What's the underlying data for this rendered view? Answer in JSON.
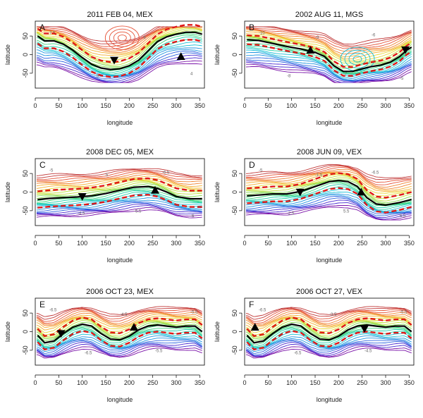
{
  "figure": {
    "description_free": true
  },
  "chart_data": [
    {
      "type": "line",
      "letter": "A",
      "title": "2011 FEB 04, MEX",
      "xlabel": "longitude",
      "ylabel": "latitude",
      "xlim": [
        0,
        360
      ],
      "ylim": [
        -90,
        90
      ],
      "xticks": [
        0,
        50,
        100,
        150,
        200,
        250,
        300,
        350
      ],
      "yticks": [
        -50,
        0,
        50
      ],
      "ytick_labels": [
        "-50",
        "0",
        "50"
      ],
      "boundary_line": {
        "longitude": [
          5,
          20,
          40,
          60,
          80,
          100,
          120,
          140,
          160,
          180,
          200,
          220,
          240,
          260,
          280,
          300,
          320,
          340,
          355
        ],
        "latitude": [
          50,
          37,
          37,
          28,
          12,
          -8,
          -26,
          -36,
          -40,
          -38,
          -30,
          -15,
          10,
          35,
          48,
          55,
          60,
          60,
          55
        ]
      },
      "dashed_offset": 20,
      "markers": [
        {
          "longitude": 168,
          "latitude": -15,
          "shape": "down"
        },
        {
          "longitude": 310,
          "latitude": -5,
          "shape": "up"
        }
      ],
      "contour_labels": [
        "7.5",
        "5",
        "6",
        "4"
      ],
      "vortex": {
        "longitude": 185,
        "latitude": 45
      }
    },
    {
      "type": "line",
      "letter": "B",
      "title": "2002 AUG 11, MGS",
      "xlabel": "longitude",
      "ylabel": "latitude",
      "xlim": [
        0,
        360
      ],
      "ylim": [
        -90,
        90
      ],
      "xticks": [
        0,
        50,
        100,
        150,
        200,
        250,
        300,
        350
      ],
      "yticks": [
        -50,
        0,
        50
      ],
      "ytick_labels": [
        "-50",
        "0",
        "50"
      ],
      "boundary_line": {
        "longitude": [
          5,
          30,
          60,
          90,
          120,
          150,
          170,
          190,
          210,
          230,
          250,
          270,
          290,
          310,
          330,
          345,
          355
        ],
        "latitude": [
          40,
          38,
          30,
          22,
          15,
          6,
          -5,
          -30,
          -45,
          -45,
          -38,
          -32,
          -28,
          -20,
          -5,
          12,
          20
        ]
      },
      "dashed_offset": 12,
      "markers": [
        {
          "longitude": 140,
          "latitude": 12,
          "shape": "up"
        },
        {
          "longitude": 342,
          "latitude": 13,
          "shape": "down"
        }
      ],
      "contour_labels": [
        "-10",
        "-8",
        "-9",
        "-7",
        "-6",
        "-5"
      ],
      "vortex": {
        "longitude": 240,
        "latitude": -12
      }
    },
    {
      "type": "line",
      "letter": "C",
      "title": "2008 DEC 05, MEX",
      "xlabel": "longitude",
      "ylabel": "latitude",
      "xlim": [
        0,
        360
      ],
      "ylim": [
        -90,
        90
      ],
      "xticks": [
        0,
        50,
        100,
        150,
        200,
        250,
        300,
        350
      ],
      "yticks": [
        -50,
        0,
        50
      ],
      "ytick_labels": [
        "-50",
        "0",
        "50"
      ],
      "boundary_line": {
        "longitude": [
          5,
          30,
          60,
          90,
          120,
          150,
          180,
          210,
          240,
          260,
          280,
          300,
          330,
          355
        ],
        "latitude": [
          -20,
          -17,
          -15,
          -13,
          -10,
          -4,
          5,
          13,
          15,
          10,
          0,
          -12,
          -18,
          -18
        ]
      },
      "dashed_offset": 22,
      "markers": [
        {
          "longitude": 100,
          "latitude": -12,
          "shape": "down"
        },
        {
          "longitude": 255,
          "latitude": 5,
          "shape": "up"
        }
      ],
      "contour_labels": [
        "-5",
        "-4.5",
        "5",
        "-5.5",
        "-6.5",
        "-6"
      ],
      "vortex": null
    },
    {
      "type": "line",
      "letter": "D",
      "title": "2008 JUN 09, VEX",
      "xlabel": "longitude",
      "ylabel": "latitude",
      "xlim": [
        0,
        360
      ],
      "ylim": [
        -90,
        90
      ],
      "xticks": [
        0,
        50,
        100,
        150,
        200,
        250,
        300,
        350
      ],
      "yticks": [
        -50,
        0,
        50
      ],
      "ytick_labels": [
        "-50",
        "0",
        "50"
      ],
      "boundary_line": {
        "longitude": [
          5,
          30,
          60,
          90,
          120,
          150,
          180,
          200,
          220,
          240,
          260,
          280,
          300,
          330,
          355
        ],
        "latitude": [
          -10,
          -8,
          -5,
          -5,
          2,
          15,
          28,
          31,
          28,
          15,
          -15,
          -32,
          -35,
          -28,
          -20
        ]
      },
      "dashed_offset": 20,
      "markers": [
        {
          "longitude": 118,
          "latitude": 0,
          "shape": "down"
        },
        {
          "longitude": 248,
          "latitude": 0,
          "shape": "up"
        }
      ],
      "contour_labels": [
        "-5",
        "-2.5",
        "-1.5",
        "5.5",
        "-6.5",
        "6.5"
      ],
      "vortex": null
    },
    {
      "type": "line",
      "letter": "E",
      "title": "2006 OCT 23, MEX",
      "xlabel": "longitude",
      "ylabel": "latitude",
      "xlim": [
        0,
        360
      ],
      "ylim": [
        -90,
        90
      ],
      "xticks": [
        0,
        50,
        100,
        150,
        200,
        250,
        300,
        350
      ],
      "yticks": [
        -50,
        0,
        50
      ],
      "ytick_labels": [
        "-50",
        "0",
        "50"
      ],
      "boundary_line": {
        "longitude": [
          5,
          20,
          40,
          60,
          80,
          100,
          120,
          140,
          160,
          180,
          200,
          220,
          240,
          260,
          280,
          300,
          320,
          340,
          355
        ],
        "latitude": [
          -10,
          -30,
          -25,
          -5,
          12,
          20,
          15,
          -5,
          -20,
          -22,
          -12,
          5,
          15,
          18,
          15,
          12,
          15,
          15,
          0
        ]
      },
      "dashed_offset": 18,
      "markers": [
        {
          "longitude": 55,
          "latitude": -5,
          "shape": "down"
        },
        {
          "longitude": 210,
          "latitude": 12,
          "shape": "up"
        }
      ],
      "contour_labels": [
        "-6.5",
        "-6.5",
        "-4.5",
        "-5.5",
        "-5.5"
      ],
      "vortex": null
    },
    {
      "type": "line",
      "letter": "F",
      "title": "2006 OCT 27, VEX",
      "xlabel": "longitude",
      "ylabel": "latitude",
      "xlim": [
        0,
        360
      ],
      "ylim": [
        -90,
        90
      ],
      "xticks": [
        0,
        50,
        100,
        150,
        200,
        250,
        300,
        350
      ],
      "yticks": [
        -50,
        0,
        50
      ],
      "ytick_labels": [
        "-50",
        "0",
        "50"
      ],
      "boundary_line": {
        "longitude": [
          5,
          20,
          40,
          60,
          80,
          100,
          120,
          140,
          160,
          180,
          200,
          220,
          240,
          260,
          280,
          300,
          320,
          340,
          355
        ],
        "latitude": [
          -10,
          -30,
          -25,
          -5,
          12,
          20,
          15,
          -5,
          -20,
          -22,
          -12,
          5,
          15,
          18,
          15,
          12,
          15,
          15,
          0
        ]
      },
      "dashed_offset": 18,
      "markers": [
        {
          "longitude": 22,
          "latitude": 12,
          "shape": "up"
        },
        {
          "longitude": 255,
          "latitude": 8,
          "shape": "down"
        }
      ],
      "contour_labels": [
        "-6.5",
        "-6.5",
        "-3.5",
        "-4.5",
        "-5.5"
      ],
      "vortex": null
    }
  ]
}
